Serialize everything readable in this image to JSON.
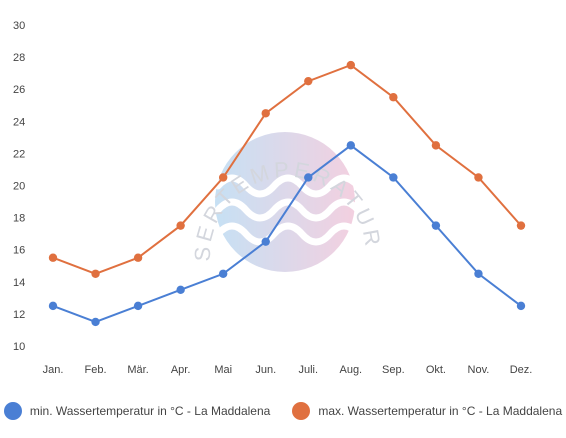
{
  "chart_data": {
    "type": "line",
    "categories": [
      "Jan.",
      "Feb.",
      "Mär.",
      "Apr.",
      "Mai",
      "Jun.",
      "Juli.",
      "Aug.",
      "Sep.",
      "Okt.",
      "Nov.",
      "Dez."
    ],
    "series": [
      {
        "name": "min. Wassertemperatur in °C - La Maddalena",
        "color": "#4a7fd4",
        "values": [
          12.5,
          11.5,
          12.5,
          13.5,
          14.5,
          16.5,
          20.5,
          22.5,
          20.5,
          17.5,
          14.5,
          12.5
        ]
      },
      {
        "name": "max. Wassertemperatur in °C - La Maddalena",
        "color": "#e0703f",
        "values": [
          15.5,
          14.5,
          15.5,
          17.5,
          20.5,
          24.5,
          26.5,
          27.5,
          25.5,
          22.5,
          20.5,
          17.5
        ]
      }
    ],
    "yticks": [
      10,
      12,
      14,
      16,
      18,
      20,
      22,
      24,
      26,
      28,
      30
    ],
    "ylim": [
      10,
      30
    ],
    "grid": false,
    "legend_position": "bottom"
  },
  "watermark": {
    "text": "WASSERTEMPERATUR.ORG"
  }
}
